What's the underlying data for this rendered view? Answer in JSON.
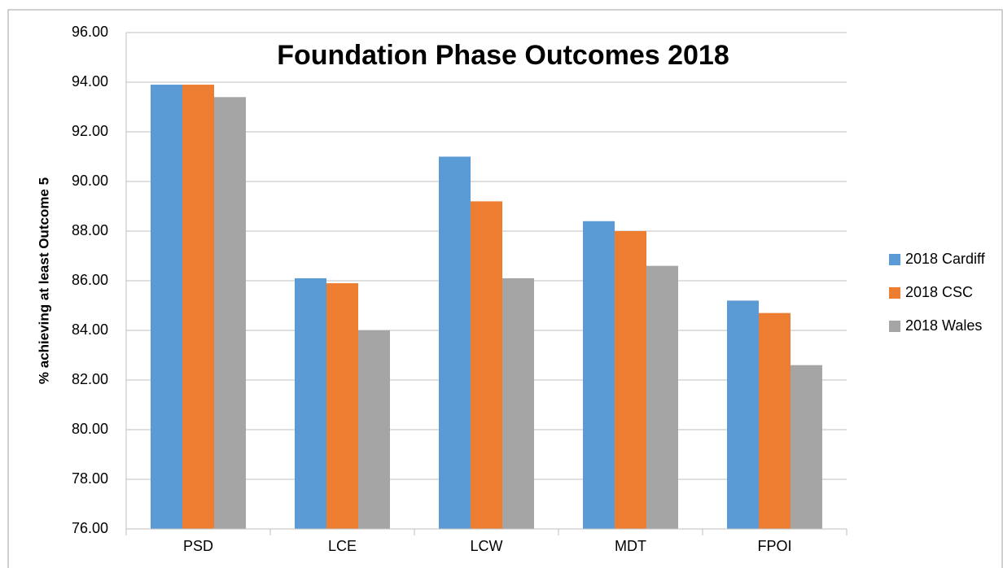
{
  "chart_data": {
    "type": "bar",
    "title": "Foundation Phase Outcomes 2018",
    "y_label": "% achieving at least Outcome 5",
    "categories": [
      "PSD",
      "LCE",
      "LCW",
      "MDT",
      "FPOI"
    ],
    "series": [
      {
        "name": "2018 Cardiff",
        "color": "#5b9bd5",
        "values": [
          93.9,
          86.1,
          91.0,
          88.4,
          85.2
        ]
      },
      {
        "name": "2018 CSC",
        "color": "#ed7d31",
        "values": [
          93.9,
          85.9,
          89.2,
          88.0,
          84.7
        ]
      },
      {
        "name": "2018 Wales",
        "color": "#a5a5a5",
        "values": [
          93.4,
          84.0,
          86.1,
          86.6,
          82.6
        ]
      }
    ],
    "ylim": [
      76,
      96
    ],
    "yticks": [
      {
        "value": 76,
        "label": "76.00"
      },
      {
        "value": 78,
        "label": "78.00"
      },
      {
        "value": 80,
        "label": "80.00"
      },
      {
        "value": 82,
        "label": "82.00"
      },
      {
        "value": 84,
        "label": "84.00"
      },
      {
        "value": 86,
        "label": "86.00"
      },
      {
        "value": 88,
        "label": "88.00"
      },
      {
        "value": 90,
        "label": "90.00"
      },
      {
        "value": 92,
        "label": "92.00"
      },
      {
        "value": 94,
        "label": "94.00"
      },
      {
        "value": 96,
        "label": "96.00"
      }
    ],
    "grid": true,
    "legend": "right"
  }
}
